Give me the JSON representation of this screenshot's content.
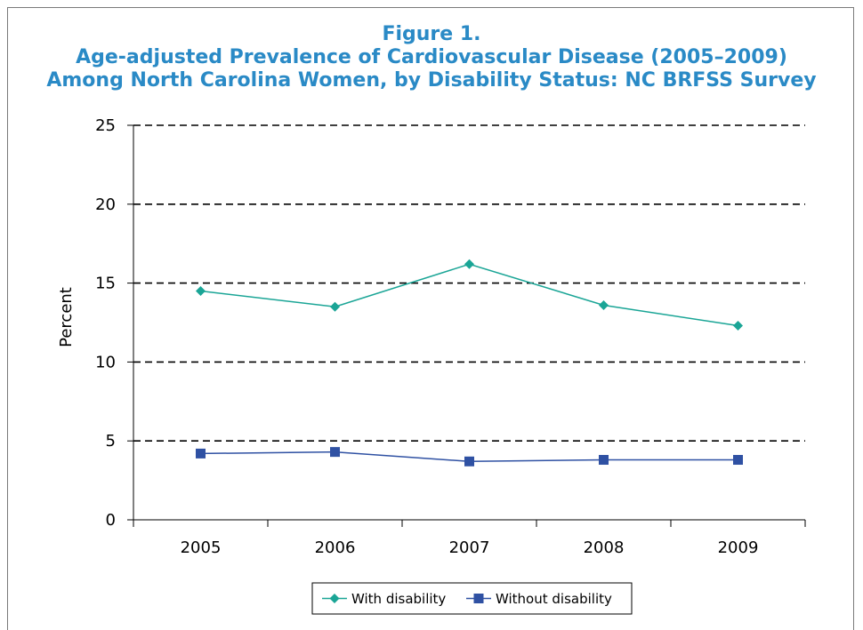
{
  "chart_data": {
    "type": "line",
    "title": [
      "Figure 1.",
      "Age-adjusted Prevalence of Cardiovascular Disease (2005–2009)",
      "Among North Carolina Women, by Disability Status: NC BRFSS Survey"
    ],
    "xlabel": "",
    "ylabel": "Percent",
    "categories": [
      "2005",
      "2006",
      "2007",
      "2008",
      "2009"
    ],
    "ylim": [
      0,
      25
    ],
    "yticks": [
      0,
      5,
      10,
      15,
      20,
      25
    ],
    "grid": "horizontal dashed",
    "legend_position": "bottom",
    "series": [
      {
        "name": "With disability",
        "values": [
          14.5,
          13.5,
          16.2,
          13.6,
          12.3
        ],
        "color": "#1aa596",
        "marker": "diamond"
      },
      {
        "name": "Without disability",
        "values": [
          4.2,
          4.3,
          3.7,
          3.8,
          3.8
        ],
        "color": "#2f51a3",
        "marker": "square"
      }
    ]
  }
}
